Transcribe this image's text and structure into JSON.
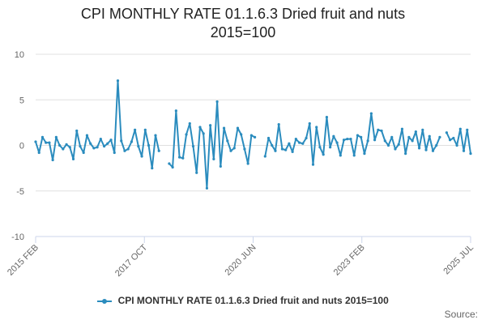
{
  "title_line1": "CPI MONTHLY RATE 01.1.6.3 Dried fruit and nuts",
  "title_line2": "2015=100",
  "legend_label": "CPI MONTHLY RATE 01.1.6.3 Dried fruit and nuts 2015=100",
  "source_label": "Source:",
  "colors": {
    "series": "#2b8cbe",
    "grid": "#e0e0e0",
    "axis": "#ccd6eb"
  },
  "chart_data": {
    "type": "line",
    "title": "CPI MONTHLY RATE 01.1.6.3 Dried fruit and nuts 2015=100",
    "ylim": [
      -10,
      10
    ],
    "yticks": [
      "10",
      "5",
      "0",
      "-5",
      "-10"
    ],
    "xticks": [
      "2015 FEB",
      "2017 OCT",
      "2020 JUN",
      "2023 FEB",
      "2025 JUL"
    ],
    "x_start": "2015 FEB",
    "x_end": "2025 JUL",
    "grid": true,
    "series": [
      {
        "name": "CPI MONTHLY RATE 01.1.6.3 Dried fruit and nuts 2015=100",
        "values": [
          0.4,
          -0.8,
          0.9,
          0.3,
          0.3,
          -1.6,
          0.9,
          0.0,
          -0.4,
          0.1,
          -0.2,
          -1.5,
          1.6,
          -0.1,
          -0.8,
          1.1,
          0.2,
          -0.3,
          -0.2,
          0.7,
          -0.1,
          0.2,
          0.6,
          -0.8,
          7.1,
          0.5,
          -0.6,
          -0.4,
          0.4,
          1.7,
          -0.1,
          -1.2,
          1.7,
          0.0,
          -2.5,
          1.1,
          -0.6,
          null,
          null,
          -2.0,
          -2.4,
          3.8,
          -1.3,
          -1.4,
          1.2,
          2.4,
          -0.1,
          -3.0,
          2.0,
          1.3,
          -4.7,
          2.2,
          -1.5,
          4.8,
          -2.3,
          1.9,
          0.5,
          -0.6,
          -0.3,
          1.9,
          1.2,
          -0.4,
          -2.0,
          1.1,
          0.9,
          null,
          null,
          -1.2,
          0.8,
          0.0,
          -0.6,
          2.3,
          -0.4,
          -0.5,
          0.2,
          -0.7,
          0.7,
          0.3,
          0.2,
          0.8,
          2.4,
          -2.1,
          2.0,
          -0.2,
          -1.0,
          3.1,
          -0.2,
          1.0,
          0.3,
          -1.1,
          0.6,
          0.7,
          0.7,
          -1.1,
          1.1,
          0.9,
          -0.9,
          0.5,
          3.5,
          0.6,
          1.7,
          1.6,
          0.5,
          0.0,
          0.9,
          -0.4,
          0.1,
          1.8,
          -0.9,
          0.9,
          0.5,
          1.5,
          -0.3,
          1.7,
          -0.5,
          1.0,
          -0.6,
          0.0,
          0.9,
          null,
          1.4,
          0.6,
          0.8,
          0.0,
          1.8,
          -0.6,
          1.7,
          -0.9
        ]
      }
    ]
  }
}
